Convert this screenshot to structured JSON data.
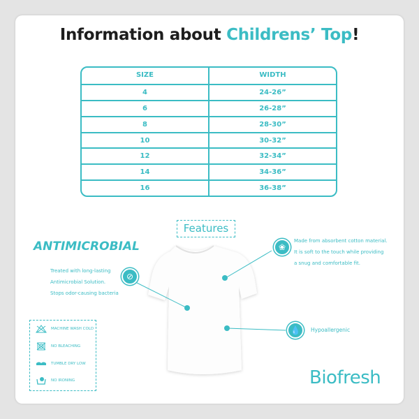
{
  "title": {
    "prefix": "Information about ",
    "highlight": "Childrens’ Top",
    "suffix": "!"
  },
  "size_table": {
    "headers": [
      "SIZE",
      "WIDTH"
    ],
    "rows": [
      [
        "4",
        "24-26”"
      ],
      [
        "6",
        "26-28”"
      ],
      [
        "8",
        "28-30”"
      ],
      [
        "10",
        "30-32”"
      ],
      [
        "12",
        "32-34”"
      ],
      [
        "14",
        "34-36”"
      ],
      [
        "16",
        "36-38”"
      ]
    ]
  },
  "features": {
    "label": "Features",
    "antimicrobial": {
      "heading": "ANTIMICROBIAL",
      "lines": [
        "Treated with long-lasting",
        "Antimicrobial Solution.",
        "Stops odor-causing bacteria"
      ],
      "icon": "no-bacteria-icon"
    },
    "cotton": {
      "lines": [
        "Made from absorbent cotton material.",
        "It is soft to the touch while providing",
        "a snug and comfortable fit."
      ],
      "icon": "cotton-icon"
    },
    "hypoallergenic": {
      "label": "Hypoallergenic",
      "icon": "drop-icon"
    }
  },
  "care": [
    "MACHINE WASH COLD",
    "NO BLEACHING",
    "TUMBLE DRY LOW",
    "NO IRONING"
  ],
  "brand": "Biofresh",
  "colors": {
    "accent": "#3bbcc4",
    "text": "#1d1d1d"
  }
}
